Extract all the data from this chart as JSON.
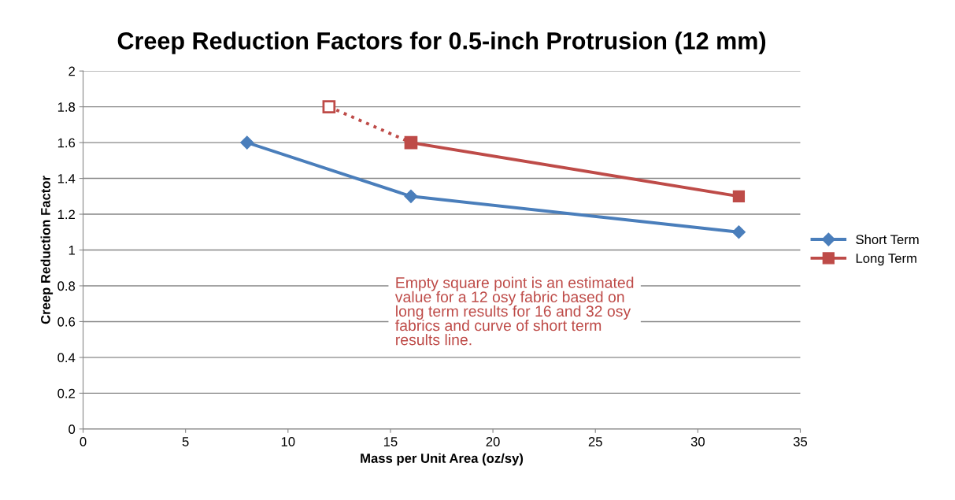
{
  "chart_data": {
    "type": "line",
    "title": "Creep Reduction Factors for 0.5-inch Protrusion (12 mm)",
    "xlabel": "Mass per Unit Area (oz/sy)",
    "ylabel": "Creep Reduction Factor",
    "series": [
      {
        "name": "Short Term",
        "color": "#4a7ebb",
        "x": [
          8,
          16,
          32
        ],
        "values": [
          1.6,
          1.3,
          1.1
        ],
        "marker": "diamond",
        "line_style": "solid"
      },
      {
        "name": "Long Term",
        "color": "#be4b48",
        "x": [
          16,
          32
        ],
        "values": [
          1.6,
          1.3
        ],
        "marker": "square",
        "line_style": "solid"
      },
      {
        "color": "#be4b48",
        "x": [
          12,
          16
        ],
        "values": [
          1.8,
          1.6
        ],
        "marker": "square",
        "line_style": "dotted"
      }
    ],
    "xlim": [
      0,
      35
    ],
    "xticks": [
      0,
      5,
      10,
      15,
      20,
      25,
      30,
      35
    ],
    "ylim": [
      0,
      2
    ],
    "yticks": [
      0,
      0.2,
      0.4,
      0.6,
      0.8,
      1,
      1.2,
      1.4,
      1.6,
      1.8,
      2
    ],
    "grid": "y",
    "legend": "right",
    "annotations": [
      "Empty square point is an estimated\nvalue for a 12 osy fabric based on\nlong term results for 16 and 32 osy\nfabrics and curve of short term\nresults line."
    ]
  }
}
